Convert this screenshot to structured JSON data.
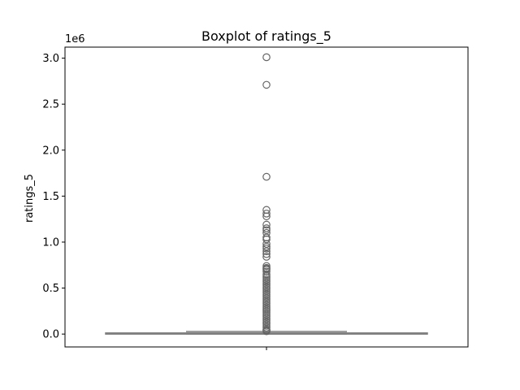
{
  "chart_data": {
    "type": "box",
    "title": "Boxplot of ratings_5",
    "xlabel": "",
    "ylabel": "ratings_5",
    "y_offset_label": "1e6",
    "ylim": [
      -0.14,
      3.12
    ],
    "ytick_values": [
      0.0,
      0.5,
      1.0,
      1.5,
      2.0,
      2.5,
      3.0
    ],
    "ytick_labels": [
      "0.0",
      "0.5",
      "1.0",
      "1.5",
      "2.0",
      "2.5",
      "3.0"
    ],
    "grid": false,
    "box": {
      "min": 0.0,
      "q1": 0.0,
      "median": 0.003,
      "q3": 0.012,
      "whisker_low": 0.0,
      "whisker_high": 0.028
    },
    "outliers": [
      3.01,
      2.71,
      1.71,
      1.35,
      1.31,
      1.28,
      1.19,
      1.15,
      1.13,
      1.1,
      1.05,
      1.03,
      0.98,
      0.95,
      0.93,
      0.9,
      0.87,
      0.84,
      0.74,
      0.72,
      0.71,
      0.7,
      0.68,
      0.65,
      0.63,
      0.61,
      0.59,
      0.57,
      0.55,
      0.53,
      0.51,
      0.49,
      0.47,
      0.45,
      0.43,
      0.41,
      0.39,
      0.37,
      0.35,
      0.33,
      0.31,
      0.29,
      0.27,
      0.25,
      0.23,
      0.21,
      0.19,
      0.17,
      0.15,
      0.13,
      0.11,
      0.09,
      0.07,
      0.05,
      0.04,
      0.035,
      0.03
    ],
    "colors": {
      "box_fill": "#ffffff",
      "box_edge": "#7f7f7f",
      "outlier_edge": "#666666",
      "axis": "#000000"
    }
  }
}
